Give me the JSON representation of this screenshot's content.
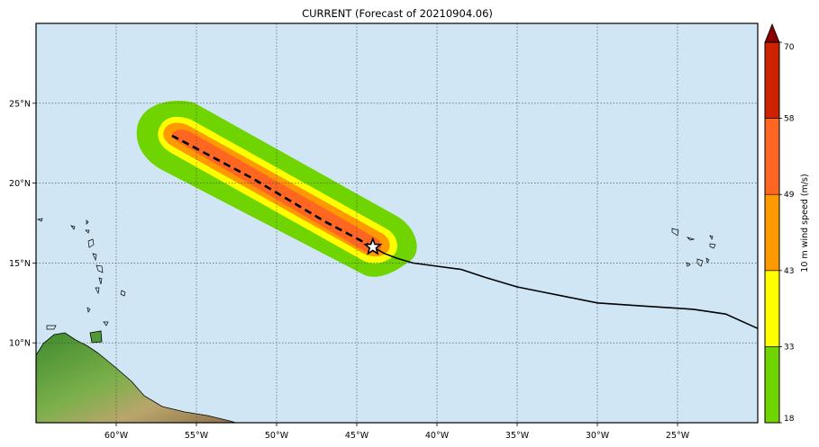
{
  "title": "CURRENT (Forecast of 20210904.06)",
  "map": {
    "lon_range": [
      -65,
      -20
    ],
    "lat_range": [
      5,
      30
    ],
    "grid": true,
    "x_ticks": [
      {
        "lon": -60,
        "label": "60°W"
      },
      {
        "lon": -55,
        "label": "55°W"
      },
      {
        "lon": -50,
        "label": "50°W"
      },
      {
        "lon": -45,
        "label": "45°W"
      },
      {
        "lon": -40,
        "label": "40°W"
      },
      {
        "lon": -35,
        "label": "35°W"
      },
      {
        "lon": -30,
        "label": "30°W"
      },
      {
        "lon": -25,
        "label": "25°W"
      }
    ],
    "y_ticks": [
      {
        "lat": 10,
        "label": "10°N"
      },
      {
        "lat": 15,
        "label": "15°N"
      },
      {
        "lat": 20,
        "label": "20°N"
      },
      {
        "lat": 25,
        "label": "25°N"
      }
    ],
    "colors": {
      "ocean": "#d1e6f5",
      "band_18_33": "#6fd400",
      "band_33_43": "#ffff00",
      "band_43_49": "#ff9900",
      "band_49_58": "#ff6622",
      "band_58_70": "#cc2200",
      "band_70_plus": "#8b0000",
      "land": "#5a9a3a"
    },
    "current_position": {
      "lon": -44.0,
      "lat": 16.0,
      "marker": "star-icon"
    },
    "past_track": [
      [
        -20.0,
        10.9
      ],
      [
        -22.0,
        11.8
      ],
      [
        -24.0,
        12.1
      ],
      [
        -27.0,
        12.3
      ],
      [
        -30.0,
        12.5
      ],
      [
        -32.0,
        12.9
      ],
      [
        -33.5,
        13.2
      ],
      [
        -35.0,
        13.5
      ],
      [
        -37.0,
        14.1
      ],
      [
        -38.5,
        14.6
      ],
      [
        -40.0,
        14.8
      ],
      [
        -41.5,
        15.0
      ],
      [
        -42.5,
        15.3
      ],
      [
        -43.3,
        15.6
      ],
      [
        -44.0,
        16.0
      ]
    ],
    "forecast_track": [
      [
        -44.0,
        16.0
      ],
      [
        -45.5,
        16.8
      ],
      [
        -47.0,
        17.6
      ],
      [
        -48.5,
        18.5
      ],
      [
        -50.0,
        19.4
      ],
      [
        -51.5,
        20.3
      ],
      [
        -53.0,
        21.1
      ],
      [
        -54.5,
        21.9
      ],
      [
        -56.0,
        22.7
      ],
      [
        -56.6,
        23.0
      ]
    ]
  },
  "colorbar": {
    "label": "10 m wind speed (m/s)",
    "ticks": [
      "18",
      "33",
      "43",
      "49",
      "58",
      "70"
    ],
    "levels": [
      18,
      33,
      43,
      49,
      58,
      70
    ],
    "colors": [
      "#6fd400",
      "#ffff00",
      "#ff9900",
      "#ff6622",
      "#cc2200"
    ],
    "extend_color": "#8b0000"
  }
}
